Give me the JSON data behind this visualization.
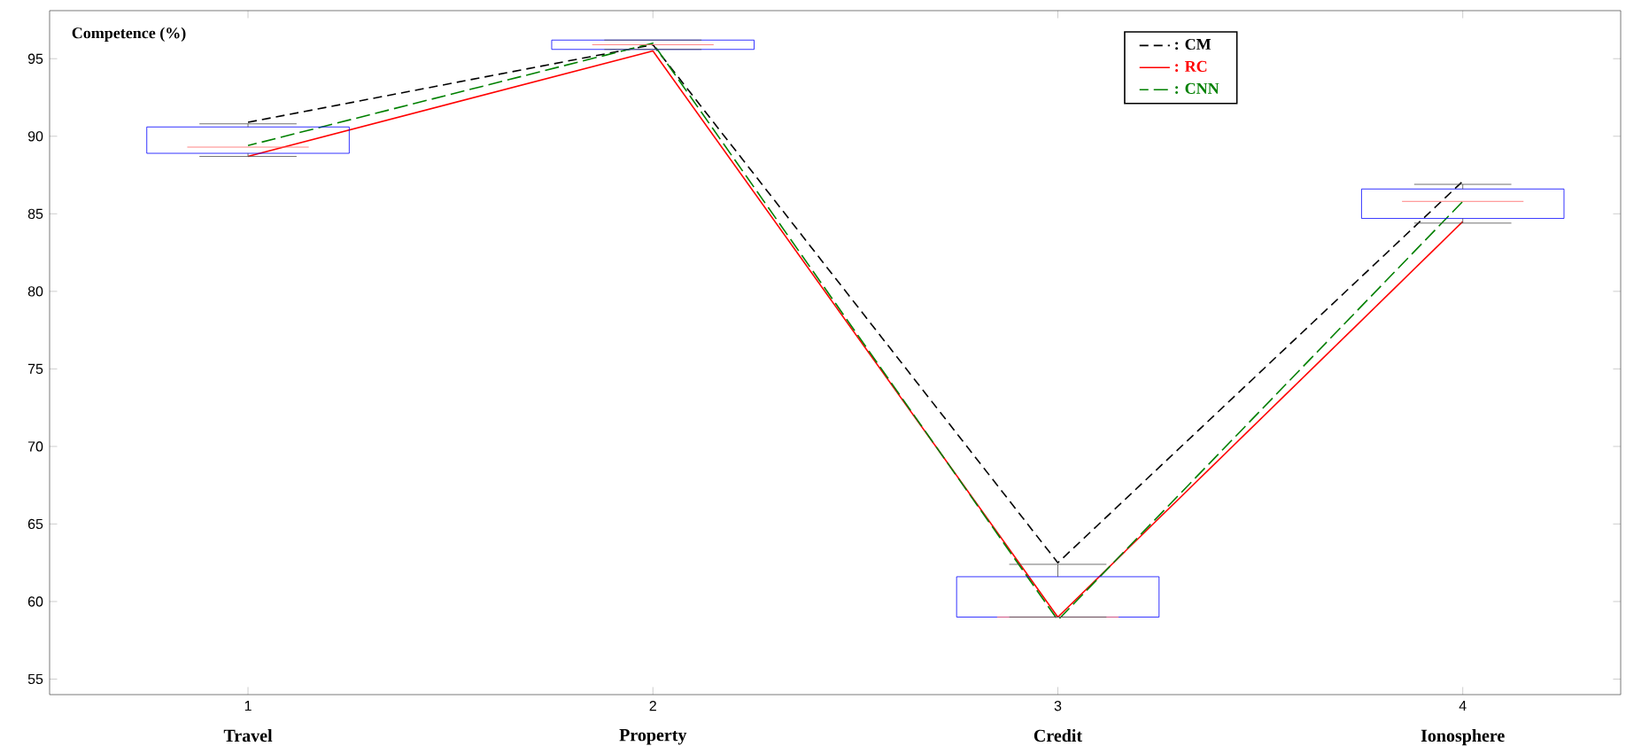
{
  "chart_data": {
    "type": "line",
    "ylabel": "Competence (%)",
    "x": [
      1,
      2,
      3,
      4
    ],
    "xlim": [
      0.51,
      4.39
    ],
    "ylim": [
      54,
      98.1
    ],
    "xticks": [
      1,
      2,
      3,
      4
    ],
    "yticks": [
      55,
      60,
      65,
      70,
      75,
      80,
      85,
      90,
      95
    ],
    "series": [
      {
        "name": ": CM",
        "color": "#000000",
        "line_style": "dashed",
        "values": [
          90.9,
          95.9,
          62.5,
          87.1
        ]
      },
      {
        "name": ": RC",
        "color": "#ff0000",
        "line_style": "solid",
        "values": [
          88.7,
          95.5,
          59.0,
          84.5
        ]
      },
      {
        "name": ": CNN",
        "color": "#008000",
        "line_style": "dashed",
        "values": [
          89.4,
          96.0,
          58.8,
          85.8
        ]
      },
      {
        "type": "box",
        "color": "#0000ff",
        "boxes": [
          {
            "low": 88.7,
            "q1": 88.9,
            "median": 89.3,
            "q3": 90.6,
            "high": 90.8
          },
          {
            "low": 95.6,
            "q1": 95.6,
            "median": 95.9,
            "q3": 96.2,
            "high": 96.2
          },
          {
            "low": 59.0,
            "q1": 59.0,
            "median": 59.0,
            "q3": 61.6,
            "high": 62.4
          },
          {
            "low": 84.4,
            "q1": 84.7,
            "median": 85.8,
            "q3": 86.6,
            "high": 86.9
          }
        ]
      }
    ],
    "annotations": [
      "Travel",
      "Property",
      "Credit",
      "Ionosphere"
    ],
    "legend": "top",
    "grid": false
  }
}
